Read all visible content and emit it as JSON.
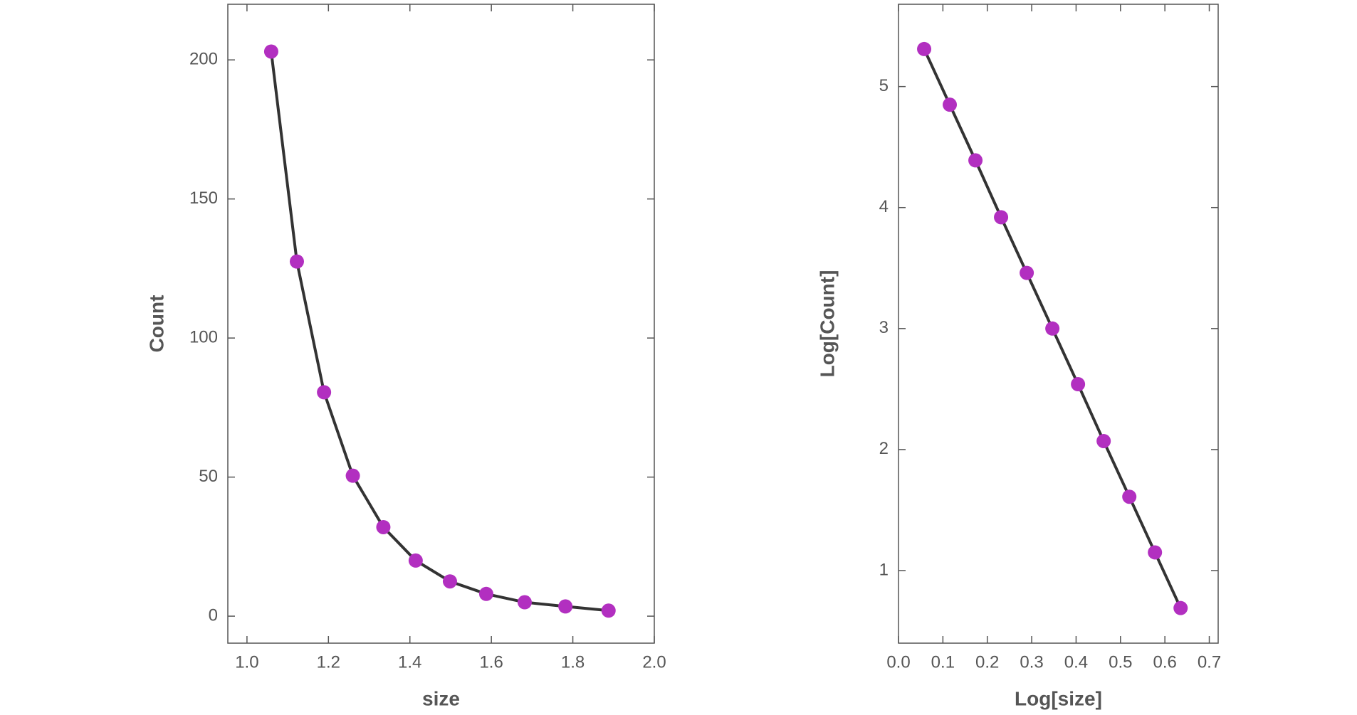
{
  "chart_data": [
    {
      "type": "line",
      "x_label": "size",
      "y_label": "Count",
      "x": [
        1.0595,
        1.1225,
        1.1892,
        1.2599,
        1.3348,
        1.4142,
        1.4983,
        1.5874,
        1.6818,
        1.7818,
        1.8877
      ],
      "series": [
        {
          "color": "#b22fc0",
          "values": [
            203,
            127.5,
            80.5,
            50.5,
            32,
            20,
            12.5,
            8,
            5,
            3.5,
            2
          ]
        }
      ],
      "line_color": "#333333",
      "xlim": [
        0.953,
        2.0
      ],
      "ylim": [
        -9.7,
        220
      ],
      "xticks": [
        {
          "value": 1,
          "label": "1.0"
        },
        1.2,
        1.4,
        1.6,
        1.8,
        {
          "value": 2,
          "label": "2.0"
        }
      ],
      "yticks": [
        0,
        50,
        100,
        150,
        200
      ]
    },
    {
      "type": "line",
      "x_label": "Log[size]",
      "y_label": "Log[Count]",
      "x": [
        0.0578,
        0.1155,
        0.1733,
        0.231,
        0.2888,
        0.3466,
        0.4043,
        0.4621,
        0.5199,
        0.5776,
        0.6354
      ],
      "series": [
        {
          "color": "#b22fc0",
          "values": [
            5.31,
            4.85,
            4.39,
            3.92,
            3.46,
            3.0,
            2.54,
            2.07,
            1.61,
            1.15,
            0.69
          ]
        }
      ],
      "line_color": "#333333",
      "xlim": [
        0.0,
        0.72
      ],
      "ylim": [
        0.4,
        5.68
      ],
      "xticks": [
        {
          "value": 0,
          "label": "0.0"
        },
        0.1,
        0.2,
        0.3,
        0.4,
        0.5,
        0.6,
        0.7
      ],
      "yticks": [
        1,
        2,
        3,
        4,
        5
      ]
    }
  ]
}
